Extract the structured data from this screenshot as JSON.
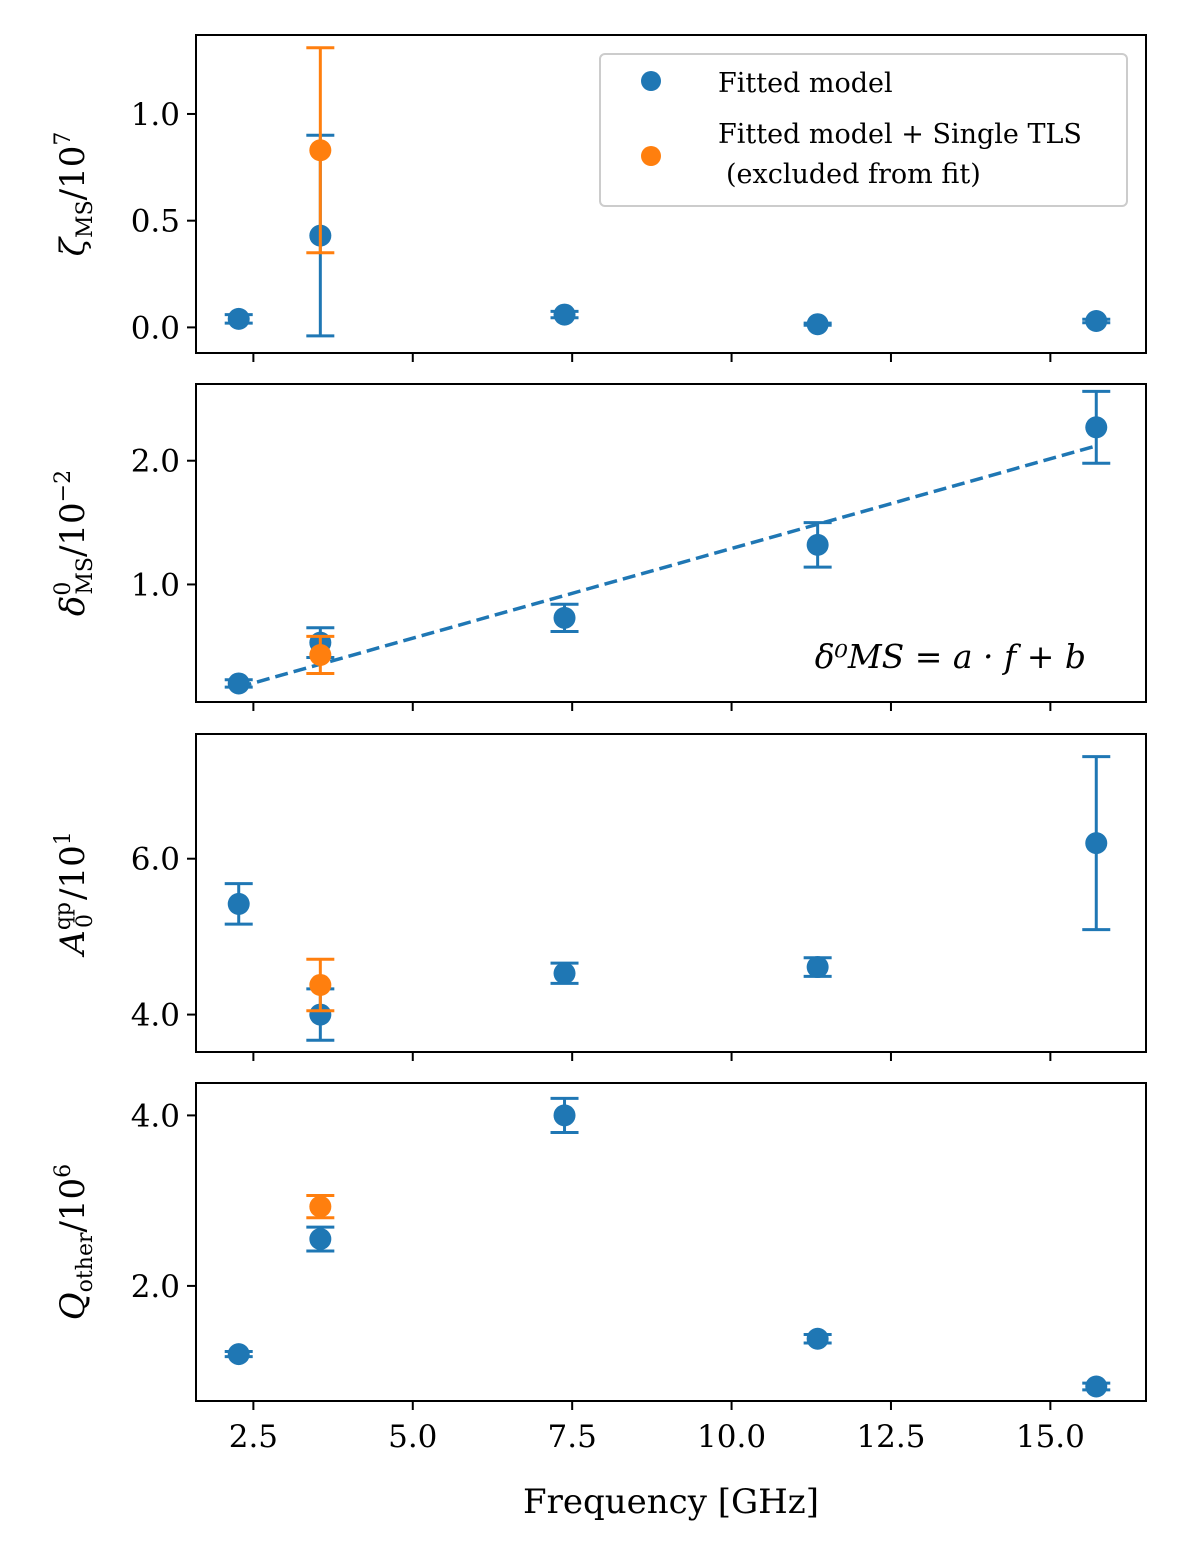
{
  "colors": {
    "fitted": "#1f77b4",
    "single_tls": "#ff7f0e",
    "axis": "#000000"
  },
  "chart_data": [
    {
      "type": "scatter",
      "id": "zeta",
      "ylabel": "ζ_MS / 10^7",
      "ylim": [
        -0.12,
        1.37
      ],
      "yticks": [
        0.0,
        0.5,
        1.0
      ],
      "ytick_labels": [
        "0.0",
        "0.5",
        "1.0"
      ],
      "series": [
        {
          "name": "Fitted model",
          "color_key": "fitted",
          "x": [
            2.27,
            3.55,
            7.38,
            11.35,
            15.72
          ],
          "y": [
            0.04,
            0.43,
            0.06,
            0.015,
            0.03
          ],
          "yerr": [
            0.02,
            0.47,
            0.015,
            0.005,
            0.008
          ]
        },
        {
          "name": "Fitted model + Single TLS (excluded from fit)",
          "color_key": "single_tls",
          "x": [
            3.55
          ],
          "y": [
            0.83
          ],
          "yerr": [
            0.48
          ]
        }
      ],
      "legend": {
        "placement": "top-right",
        "entries": [
          "Fitted model",
          "Fitted model + Single TLS",
          "(excluded from fit)"
        ]
      }
    },
    {
      "type": "scatter",
      "id": "delta",
      "ylabel": "δ⁰_MS / 10^-2",
      "ylim": [
        0.05,
        2.62
      ],
      "yticks": [
        1.0,
        2.0
      ],
      "ytick_labels": [
        "1.0",
        "2.0"
      ],
      "series": [
        {
          "name": "Fitted model",
          "color_key": "fitted",
          "x": [
            2.27,
            3.55,
            7.38,
            11.35,
            15.72
          ],
          "y": [
            0.2,
            0.53,
            0.73,
            1.32,
            2.27
          ],
          "yerr": [
            0.03,
            0.12,
            0.11,
            0.18,
            0.29
          ]
        },
        {
          "name": "Fitted model + Single TLS (excluded from fit)",
          "color_key": "single_tls",
          "x": [
            3.55
          ],
          "y": [
            0.43
          ],
          "yerr": [
            0.15
          ]
        }
      ],
      "fit_line": {
        "x": [
          2.27,
          15.72
        ],
        "y": [
          0.17,
          2.12
        ],
        "style": "dashed"
      },
      "annotation": "δ⁰MS = a · f + b"
    },
    {
      "type": "scatter",
      "id": "aqp",
      "ylabel": "A₀^qp / 10^1",
      "ylim": [
        3.52,
        7.6
      ],
      "yticks": [
        4.0,
        6.0
      ],
      "ytick_labels": [
        "4.0",
        "6.0"
      ],
      "series": [
        {
          "name": "Fitted model",
          "color_key": "fitted",
          "x": [
            2.27,
            3.55,
            7.38,
            11.35,
            15.72
          ],
          "y": [
            5.42,
            4.0,
            4.53,
            4.61,
            6.2
          ],
          "yerr": [
            0.26,
            0.33,
            0.13,
            0.12,
            1.11
          ]
        },
        {
          "name": "Fitted model + Single TLS (excluded from fit)",
          "color_key": "single_tls",
          "x": [
            3.55
          ],
          "y": [
            4.38
          ],
          "yerr": [
            0.33
          ]
        }
      ]
    },
    {
      "type": "scatter",
      "id": "qother",
      "ylabel": "Q_other / 10^6",
      "xlabel": "Frequency [GHz]",
      "xlim": [
        1.6,
        16.5
      ],
      "xticks": [
        2.5,
        5.0,
        7.5,
        10.0,
        12.5,
        15.0
      ],
      "xtick_labels": [
        "2.5",
        "5.0",
        "7.5",
        "10.0",
        "12.5",
        "15.0"
      ],
      "ylim": [
        0.65,
        4.38
      ],
      "yticks": [
        2.0,
        4.0
      ],
      "ytick_labels": [
        "2.0",
        "4.0"
      ],
      "series": [
        {
          "name": "Fitted model",
          "color_key": "fitted",
          "x": [
            2.27,
            3.55,
            7.38,
            11.35,
            15.72
          ],
          "y": [
            1.2,
            2.55,
            4.0,
            1.38,
            0.82
          ],
          "yerr": [
            0.03,
            0.14,
            0.2,
            0.05,
            0.04
          ]
        },
        {
          "name": "Fitted model + Single TLS (excluded from fit)",
          "color_key": "single_tls",
          "x": [
            3.55
          ],
          "y": [
            2.93
          ],
          "yerr": [
            0.13
          ]
        }
      ]
    }
  ]
}
